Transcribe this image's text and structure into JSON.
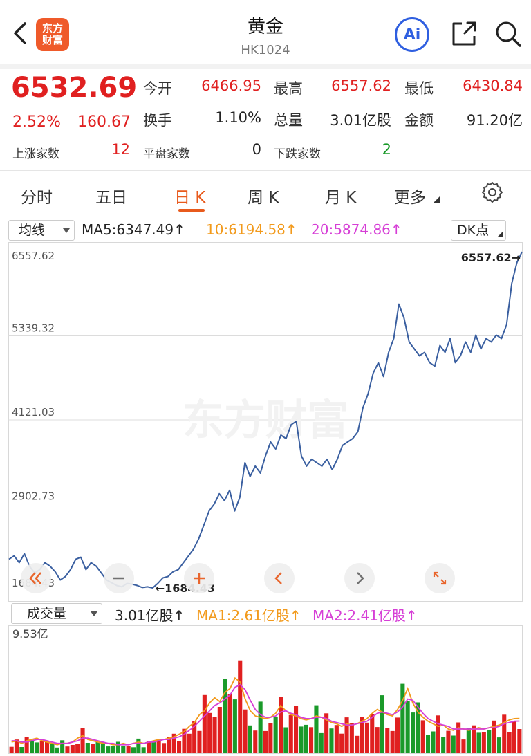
{
  "header": {
    "title": "黄金",
    "code": "HK1024",
    "logo_line1": "东方",
    "logo_line2": "财富",
    "ai_label": "Ai"
  },
  "quote": {
    "price": "6532.69",
    "change_pct": "2.52%",
    "change": "160.67",
    "open_label": "今开",
    "open": "6466.95",
    "high_label": "最高",
    "high": "6557.62",
    "low_label": "最低",
    "low": "6430.84",
    "turnover_label": "换手",
    "turnover": "1.10%",
    "volume_label": "总量",
    "volume": "3.01亿股",
    "amount_label": "金额",
    "amount": "91.20亿",
    "up_label": "上涨家数",
    "up": "12",
    "flat_label": "平盘家数",
    "flat": "0",
    "down_label": "下跌家数",
    "down": "2"
  },
  "tabs": [
    {
      "label": "分时"
    },
    {
      "label": "五日"
    },
    {
      "label": "日 K"
    },
    {
      "label": "周 K"
    },
    {
      "label": "月 K"
    },
    {
      "label": "更多"
    }
  ],
  "active_tab": "日 K",
  "ma_bar": {
    "selector": "均线",
    "ma5": "MA5:6347.49↑",
    "ma10": "10:6194.58↑",
    "ma20": "20:5874.86↑",
    "dk": "DK点"
  },
  "vol_bar": {
    "selector": "成交量",
    "vol": "3.01亿股↑",
    "ma1": "MA1:2.61亿股↑",
    "ma2": "MA2:2.41亿股↑"
  },
  "watermark": "东方财富",
  "colors": {
    "up": "#e02020",
    "down": "#1a9a2a",
    "line": "#3a5fa0",
    "accent": "#e85a1c",
    "ma1": "#f29a1c",
    "ma2": "#d63ed6"
  },
  "chart_data": [
    {
      "type": "line",
      "title": "",
      "ylim": [
        1684.43,
        6557.62
      ],
      "y_ticks": [
        "6557.62",
        "5339.32",
        "4121.03",
        "2902.73",
        "1684.43"
      ],
      "max_label": "6557.62→",
      "min_label": "←1684.43",
      "values": [
        2100,
        2150,
        2050,
        2180,
        2000,
        1900,
        1950,
        2050,
        2000,
        1920,
        1800,
        1850,
        1950,
        2100,
        2130,
        1950,
        2050,
        2000,
        1900,
        1800,
        1760,
        1720,
        1700,
        1750,
        1740,
        1720,
        1690,
        1700,
        1684,
        1750,
        1830,
        1850,
        1920,
        1950,
        2050,
        2150,
        2250,
        2400,
        2600,
        2800,
        2900,
        3050,
        2950,
        3100,
        2800,
        3000,
        3500,
        3300,
        3450,
        3350,
        3600,
        3800,
        3700,
        3900,
        3850,
        4050,
        4100,
        3600,
        3450,
        3550,
        3500,
        3450,
        3550,
        3400,
        3550,
        3750,
        3800,
        3850,
        3950,
        4300,
        4500,
        4800,
        4950,
        4750,
        5100,
        5300,
        5800,
        5600,
        5250,
        5150,
        5050,
        5100,
        4950,
        4900,
        5200,
        5100,
        5300,
        4950,
        5050,
        5250,
        5100,
        5350,
        5150,
        5300,
        5250,
        5350,
        5300,
        5500,
        6100,
        6400,
        6557
      ]
    },
    {
      "type": "bar",
      "title": "",
      "ylabel": "9.53亿",
      "ylim": [
        0,
        9.53
      ],
      "series": [
        {
          "name": "MA1",
          "values": [
            0.8,
            0.9,
            0.7,
            0.9,
            1.0,
            1.1,
            0.9,
            0.8,
            0.7,
            0.6,
            0.7,
            0.7,
            0.8,
            1.1,
            1.3,
            1.0,
            0.9,
            0.8,
            0.7,
            0.7,
            0.6,
            0.6,
            0.7,
            0.6,
            0.7,
            0.8,
            0.7,
            0.8,
            0.9,
            1.0,
            1.0,
            1.1,
            1.2,
            1.4,
            1.6,
            2.0,
            2.3,
            2.9,
            3.2,
            3.8,
            4.2,
            3.9,
            4.6,
            4.9,
            5.7,
            5.4,
            4.1,
            3.2,
            2.8,
            2.7,
            2.6,
            2.7,
            3.0,
            3.6,
            3.2,
            2.9,
            2.8,
            2.6,
            2.5,
            2.6,
            2.8,
            2.7,
            2.5,
            2.3,
            2.2,
            2.0,
            2.2,
            2.1,
            2.2,
            2.4,
            2.6,
            3.0,
            3.3,
            3.1,
            2.9,
            2.8,
            3.3,
            4.0,
            4.9,
            3.8,
            3.1,
            2.7,
            2.4,
            2.2,
            2.0,
            2.1,
            1.8,
            1.7,
            1.9,
            1.8,
            1.7,
            1.8,
            1.9,
            1.8,
            1.9,
            2.0,
            2.1,
            2.3,
            2.5,
            2.6,
            2.61
          ]
        },
        {
          "name": "MA2",
          "values": [
            0.9,
            0.9,
            0.8,
            0.8,
            0.9,
            1.0,
            1.0,
            0.9,
            0.8,
            0.7,
            0.7,
            0.7,
            0.8,
            0.9,
            1.1,
            1.1,
            1.0,
            0.9,
            0.8,
            0.7,
            0.7,
            0.6,
            0.6,
            0.6,
            0.7,
            0.7,
            0.7,
            0.8,
            0.8,
            0.9,
            1.0,
            1.0,
            1.1,
            1.2,
            1.4,
            1.7,
            2.0,
            2.4,
            2.8,
            3.2,
            3.6,
            3.8,
            4.1,
            4.4,
            5.0,
            5.2,
            4.8,
            4.0,
            3.3,
            2.9,
            2.7,
            2.7,
            2.8,
            3.1,
            3.2,
            3.0,
            2.9,
            2.7,
            2.6,
            2.6,
            2.7,
            2.7,
            2.6,
            2.4,
            2.3,
            2.2,
            2.1,
            2.1,
            2.2,
            2.3,
            2.4,
            2.7,
            3.0,
            3.1,
            3.0,
            2.9,
            3.1,
            3.5,
            4.1,
            4.0,
            3.5,
            3.0,
            2.6,
            2.4,
            2.2,
            2.1,
            2.0,
            1.8,
            1.8,
            1.8,
            1.8,
            1.8,
            1.8,
            1.8,
            1.9,
            1.9,
            2.0,
            2.2,
            2.3,
            2.4,
            2.41
          ]
        }
      ]
    }
  ]
}
